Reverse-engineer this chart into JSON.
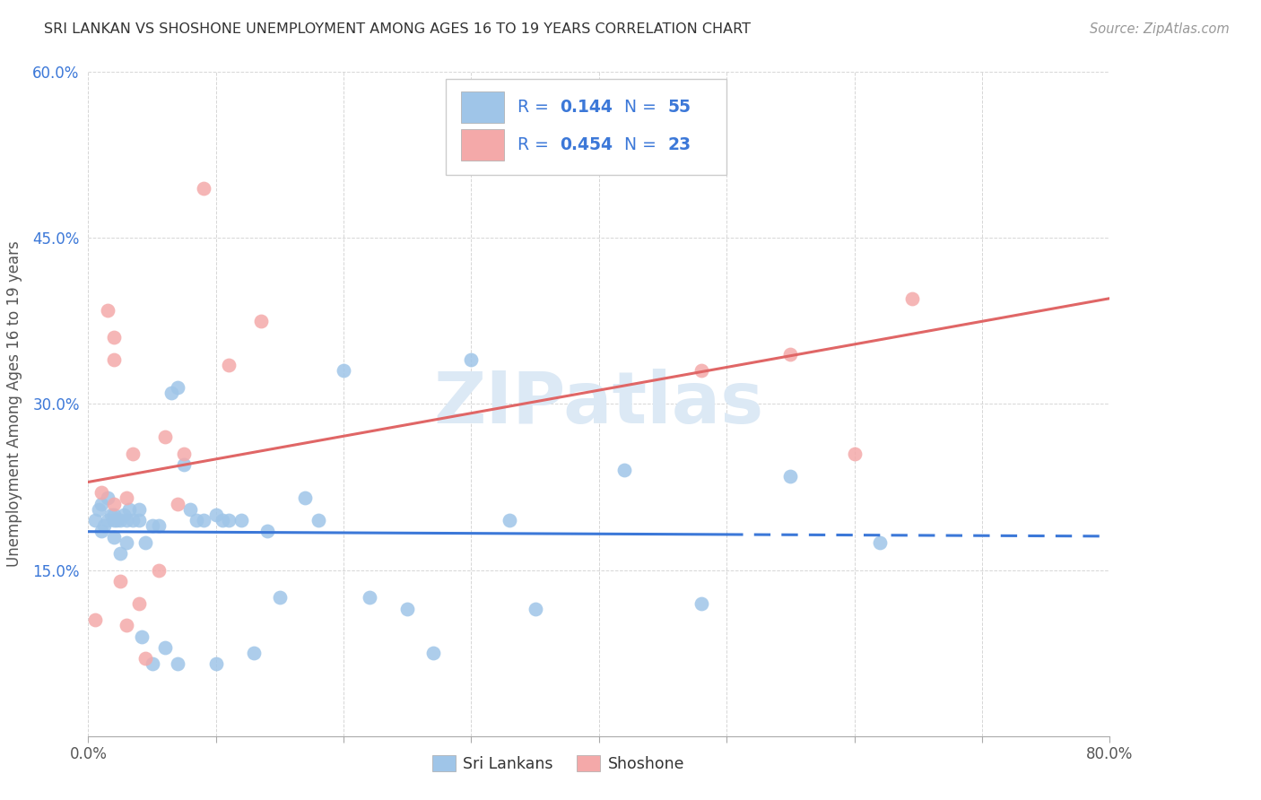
{
  "title": "SRI LANKAN VS SHOSHONE UNEMPLOYMENT AMONG AGES 16 TO 19 YEARS CORRELATION CHART",
  "source": "Source: ZipAtlas.com",
  "ylabel": "Unemployment Among Ages 16 to 19 years",
  "xlim": [
    0.0,
    0.8
  ],
  "ylim": [
    0.0,
    0.6
  ],
  "xticks": [
    0.0,
    0.1,
    0.2,
    0.3,
    0.4,
    0.5,
    0.6,
    0.7,
    0.8
  ],
  "xticklabels": [
    "0.0%",
    "",
    "",
    "",
    "",
    "",
    "",
    "",
    "80.0%"
  ],
  "ytick_positions": [
    0.0,
    0.15,
    0.3,
    0.45,
    0.6
  ],
  "yticklabels": [
    "",
    "15.0%",
    "30.0%",
    "45.0%",
    "60.0%"
  ],
  "sri_lankan_dot_color": "#9fc5e8",
  "shoshone_dot_color": "#f4a9a9",
  "sri_lankan_line_color": "#3c78d8",
  "shoshone_line_color": "#e06666",
  "legend_text_color": "#3c78d8",
  "ytick_color": "#3c78d8",
  "background_color": "#ffffff",
  "watermark_text": "ZIPatlas",
  "watermark_color": "#dce9f5",
  "legend_label_1": "Sri Lankans",
  "legend_label_2": "Shoshone",
  "sri_lankans_x": [
    0.005,
    0.008,
    0.01,
    0.01,
    0.012,
    0.015,
    0.015,
    0.018,
    0.02,
    0.02,
    0.02,
    0.022,
    0.025,
    0.025,
    0.028,
    0.03,
    0.03,
    0.032,
    0.035,
    0.04,
    0.04,
    0.042,
    0.045,
    0.05,
    0.05,
    0.055,
    0.06,
    0.065,
    0.07,
    0.07,
    0.075,
    0.08,
    0.085,
    0.09,
    0.1,
    0.1,
    0.105,
    0.11,
    0.12,
    0.13,
    0.14,
    0.15,
    0.17,
    0.18,
    0.2,
    0.22,
    0.25,
    0.27,
    0.3,
    0.33,
    0.35,
    0.42,
    0.48,
    0.55,
    0.62
  ],
  "sri_lankans_y": [
    0.195,
    0.205,
    0.185,
    0.21,
    0.19,
    0.195,
    0.215,
    0.2,
    0.18,
    0.195,
    0.2,
    0.195,
    0.165,
    0.195,
    0.2,
    0.175,
    0.195,
    0.205,
    0.195,
    0.205,
    0.195,
    0.09,
    0.175,
    0.19,
    0.065,
    0.19,
    0.08,
    0.31,
    0.315,
    0.065,
    0.245,
    0.205,
    0.195,
    0.195,
    0.065,
    0.2,
    0.195,
    0.195,
    0.195,
    0.075,
    0.185,
    0.125,
    0.215,
    0.195,
    0.33,
    0.125,
    0.115,
    0.075,
    0.34,
    0.195,
    0.115,
    0.24,
    0.12,
    0.235,
    0.175
  ],
  "shoshone_x": [
    0.005,
    0.01,
    0.015,
    0.02,
    0.02,
    0.02,
    0.025,
    0.03,
    0.03,
    0.035,
    0.04,
    0.045,
    0.055,
    0.06,
    0.07,
    0.075,
    0.09,
    0.11,
    0.135,
    0.48,
    0.55,
    0.6,
    0.645
  ],
  "shoshone_y": [
    0.105,
    0.22,
    0.385,
    0.34,
    0.36,
    0.21,
    0.14,
    0.215,
    0.1,
    0.255,
    0.12,
    0.07,
    0.15,
    0.27,
    0.21,
    0.255,
    0.495,
    0.335,
    0.375,
    0.33,
    0.345,
    0.255,
    0.395
  ],
  "sl_line_x_solid_end": 0.5,
  "sl_line_x_dash_end": 0.8,
  "sh_line_x_end": 0.8
}
